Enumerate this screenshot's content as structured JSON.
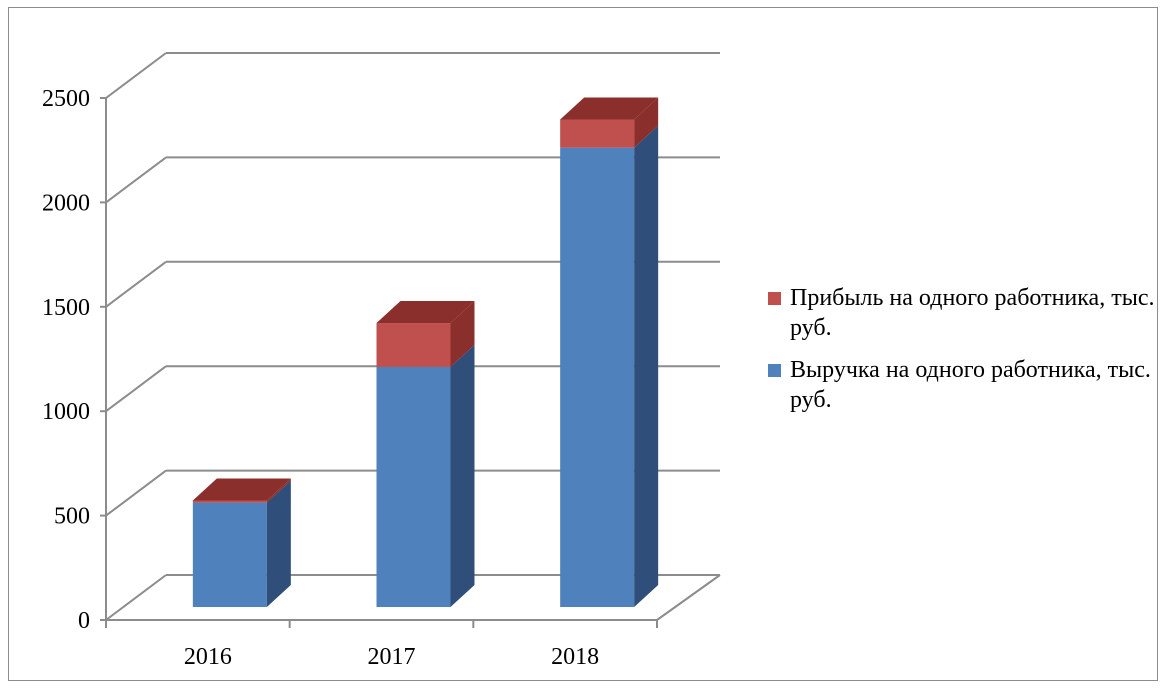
{
  "chart_data": {
    "type": "bar",
    "stacked": true,
    "three_d": true,
    "categories": [
      "2016",
      "2017",
      "2018"
    ],
    "series": [
      {
        "name": "Выручка на одного работника, тыс. руб.",
        "values": [
          500,
          1150,
          2200
        ],
        "color": "#4f81bd",
        "side_color": "#2f4f7a"
      },
      {
        "name": "Прибыль на одного работника, тыс. руб.",
        "values": [
          10,
          210,
          135
        ],
        "color": "#c0504d",
        "side_color": "#8b2f2d"
      }
    ],
    "ylim": [
      0,
      2500
    ],
    "yticks": [
      "0",
      "500",
      "1000",
      "1500",
      "2000",
      "2500"
    ],
    "title": "",
    "xlabel": "",
    "ylabel": "",
    "grid": true,
    "legend_position": "right"
  }
}
